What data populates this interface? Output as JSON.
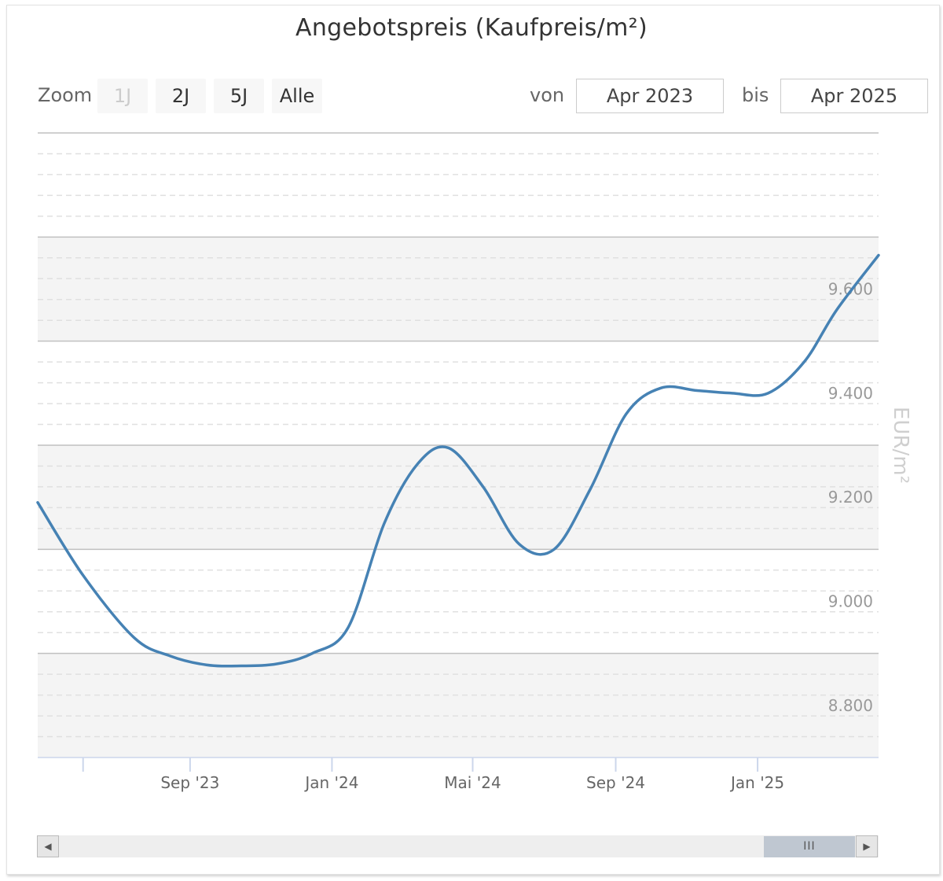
{
  "title": "Angebotspreis (Kaufpreis/m²)",
  "zoom": {
    "label": "Zoom",
    "buttons": [
      {
        "label": "1J",
        "disabled": true
      },
      {
        "label": "2J",
        "disabled": false
      },
      {
        "label": "5J",
        "disabled": false
      },
      {
        "label": "Alle",
        "disabled": false
      }
    ]
  },
  "range": {
    "from_label": "von",
    "from_value": "Apr 2023",
    "to_label": "bis",
    "to_value": "Apr 2025"
  },
  "scrollbar": {
    "left_icon": "arrow-left-icon",
    "right_icon": "arrow-right-icon",
    "thumb_grip": "III"
  },
  "colors": {
    "line": "#4682b4",
    "band": "#f4f4f4",
    "grid_major": "#c0c0c0",
    "grid_minor": "#e0e0e0"
  },
  "chart_data": {
    "type": "line",
    "title": "Angebotspreis (Kaufpreis/m²)",
    "ylabel": "EUR/m²",
    "xlabel": "",
    "ylim": [
      8700,
      9900
    ],
    "yticks": [
      8800,
      9000,
      9200,
      9400,
      9600
    ],
    "ytick_labels": [
      "8.800",
      "9.000",
      "9.200",
      "9.400",
      "9.600"
    ],
    "xlim": [
      "2023-04-23",
      "2025-04-15"
    ],
    "xticks": [
      "2023-09-01",
      "2024-01-01",
      "2024-05-01",
      "2024-09-01",
      "2025-01-01"
    ],
    "xtick_labels": [
      "Sep '23",
      "Jan '24",
      "Mai '24",
      "Sep '24",
      "Jan '25"
    ],
    "grid": true,
    "legend": "none",
    "series": [
      {
        "x": [
          "2023-04-23",
          "2023-06-01",
          "2023-07-15",
          "2023-08-15",
          "2023-09-15",
          "2023-10-15",
          "2023-11-15",
          "2023-12-15",
          "2024-01-15",
          "2024-02-15",
          "2024-03-15",
          "2024-04-10",
          "2024-05-10",
          "2024-06-10",
          "2024-07-10",
          "2024-08-10",
          "2024-09-10",
          "2024-10-10",
          "2024-11-10",
          "2024-12-10",
          "2025-01-10",
          "2025-02-10",
          "2025-03-10",
          "2025-04-15"
        ],
        "y": [
          9190,
          9050,
          8930,
          8895,
          8878,
          8876,
          8880,
          8900,
          8950,
          9150,
          9265,
          9295,
          9220,
          9110,
          9100,
          9215,
          9360,
          9410,
          9405,
          9400,
          9400,
          9460,
          9560,
          9665
        ]
      }
    ]
  }
}
